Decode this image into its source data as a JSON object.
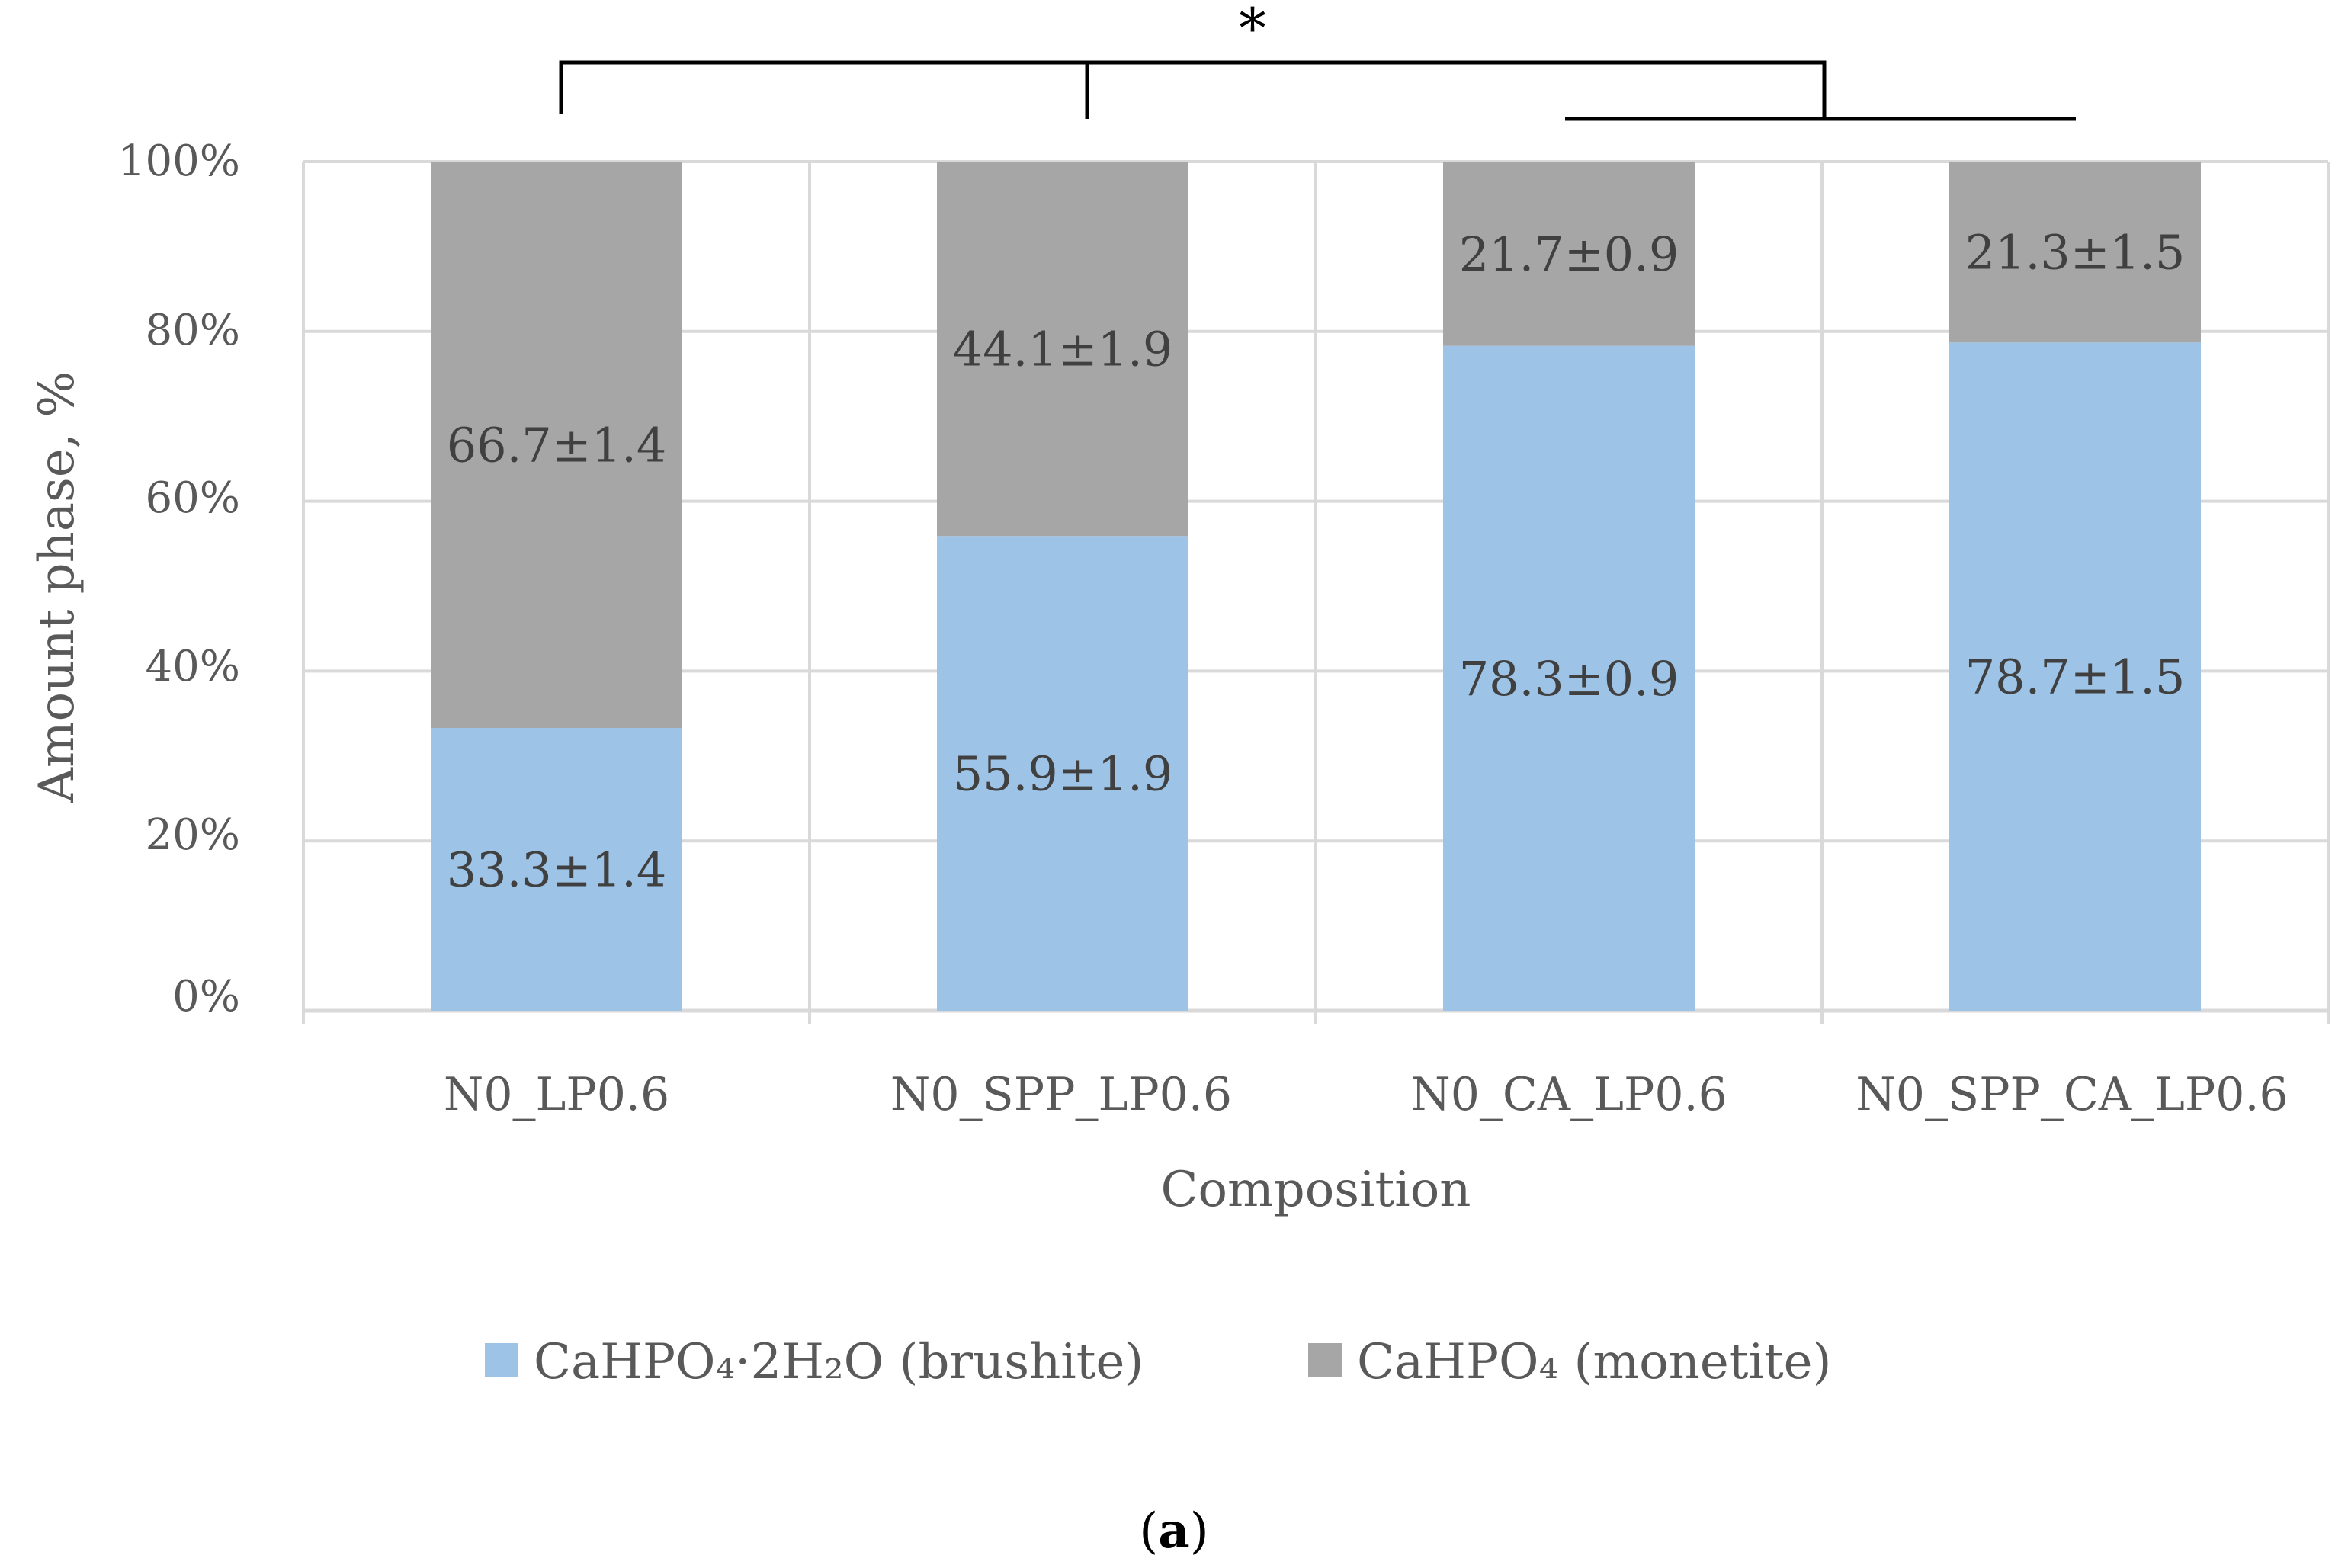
{
  "chart_data": {
    "type": "bar",
    "stacked": true,
    "categories": [
      "N0_LP0.6",
      "N0_SPP_LP0.6",
      "N0_CA_LP0.6",
      "N0_SPP_CA_LP0.6"
    ],
    "series": [
      {
        "name": "CaHPO₄·2H₂O (brushite)",
        "color": "#9dc3e6",
        "values": [
          33.3,
          55.9,
          78.3,
          78.7
        ],
        "labels": [
          "33.3±1.4",
          "55.9±1.9",
          "78.3±0.9",
          "78.7±1.5"
        ]
      },
      {
        "name": "CaHPO₄ (monetite)",
        "color": "#a6a6a6",
        "values": [
          66.7,
          44.1,
          21.7,
          21.3
        ],
        "labels": [
          "66.7±1.4",
          "44.1±1.9",
          "21.7±0.9",
          "21.3±1.5"
        ]
      }
    ],
    "xlabel": "Composition",
    "ylabel": "Amount phase, %",
    "ylim": [
      0,
      100
    ],
    "yticks": [
      "0%",
      "20%",
      "40%",
      "60%",
      "80%",
      "100%"
    ],
    "grid": true,
    "legend_position": "bottom",
    "annotations": [
      "*"
    ]
  },
  "caption": {
    "open": "(",
    "letter": "a",
    "close": ")"
  },
  "colors": {
    "grid": "#d9d9d9",
    "axis_text": "#595959",
    "bracket": "#000000"
  }
}
